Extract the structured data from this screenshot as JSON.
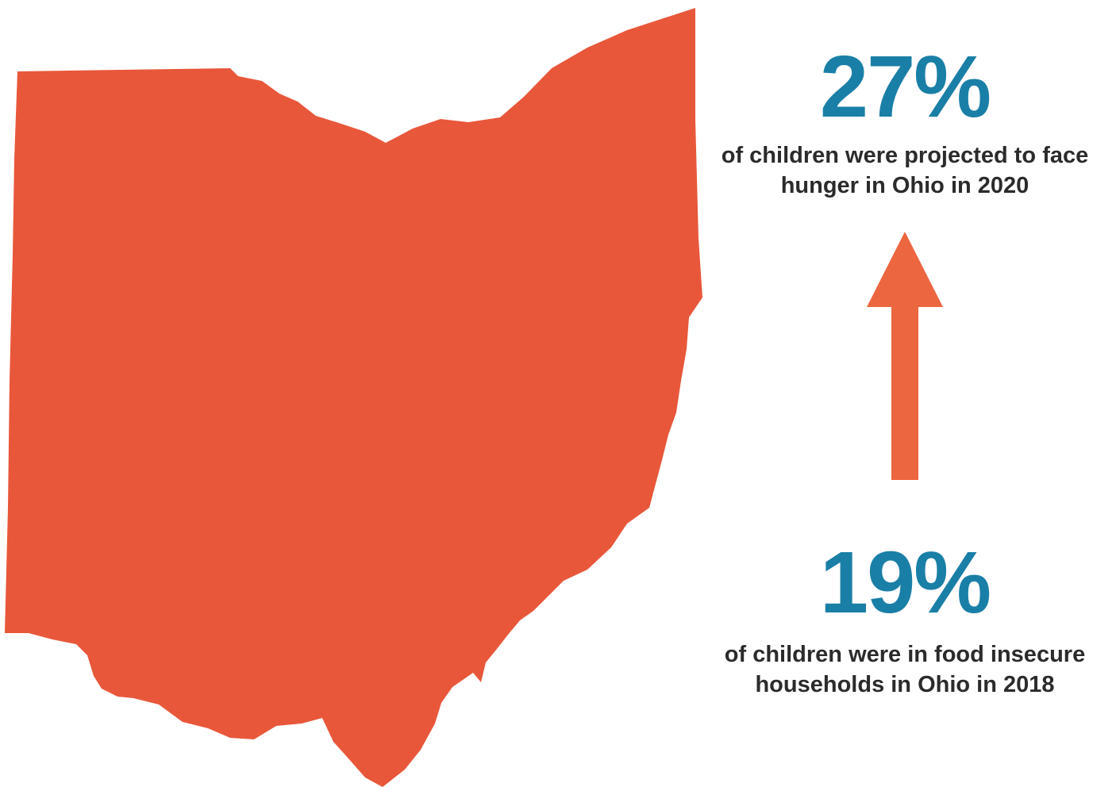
{
  "colors": {
    "map_fill": "#e8573a",
    "arrow_fill": "#ec6640",
    "stat_number": "#1a7fa6",
    "caption_text": "#2b2b2b"
  },
  "map": {
    "icon": "ohio-state-silhouette"
  },
  "arrow": {
    "icon": "up-arrow-icon",
    "direction": "up"
  },
  "stat_2020": {
    "value": "27%",
    "caption_line1": "of children were projected to face",
    "caption_line2": "hunger in Ohio in 2020"
  },
  "stat_2018": {
    "value": "19%",
    "caption_line1": "of children were in food insecure",
    "caption_line2": "households in Ohio in 2018"
  }
}
